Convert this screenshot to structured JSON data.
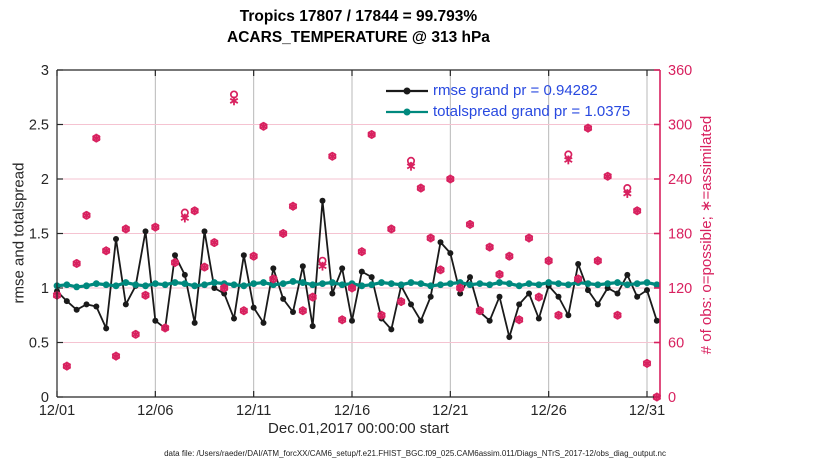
{
  "title": {
    "line1": "Tropics 17807 / 17844 = 99.793%",
    "line2": "ACARS_TEMPERATURE @ 313 hPa"
  },
  "footer": {
    "data_file_note": "data file: /Users/raeder/DAI/ATM_forcXX/CAM6_setup/f.e21.FHIST_BGC.f09_025.CAM6assim.011/Diags_NTrS_2017-12/obs_diag_output.nc"
  },
  "colors": {
    "obs_pink": "#D8215F",
    "rmse_black": "#1a1a1a",
    "totalspread_teal": "#00897E",
    "legend_text_blue": "#2849E0",
    "axis_dark": "#262626",
    "grid_vertical": "#b8b8b8",
    "grid_horizontal": "#f5c3d1",
    "background": "#ffffff"
  },
  "chart_data": {
    "type": "line",
    "title": [
      "Tropics 17807 / 17844 = 99.793%",
      "ACARS_TEMPERATURE @ 313 hPa"
    ],
    "xlabel": "Dec.01,2017 00:00:00 start",
    "ylabel_left": "rmse and totalspread",
    "ylabel_right": "# of obs: o=possible; ∗=assimilated",
    "grid": true,
    "legend_position": "top-right-inside",
    "obs_possible_total": 17844,
    "obs_assimilated_total": 17807,
    "percent_assimilated": 99.793,
    "rmse_grand_mean": 0.94282,
    "totalspread_grand_mean": 1.0375,
    "x_tick_labels": [
      "12/01",
      "12/06",
      "12/11",
      "12/16",
      "12/21",
      "12/26",
      "12/31"
    ],
    "x_tick_days": [
      0,
      5,
      10,
      15,
      20,
      25,
      30
    ],
    "xlim_days": [
      0,
      30.65
    ],
    "ylim_left": [
      0,
      3
    ],
    "yticks_left": [
      0,
      0.5,
      1,
      1.5,
      2,
      2.5,
      3
    ],
    "ylim_right": [
      0,
      360
    ],
    "yticks_right": [
      0,
      60,
      120,
      180,
      240,
      300,
      360
    ],
    "x_days": [
      0,
      0.5,
      1,
      1.5,
      2,
      2.5,
      3,
      3.5,
      4,
      4.5,
      5,
      5.5,
      6,
      6.5,
      7,
      7.5,
      8,
      8.5,
      9,
      9.5,
      10,
      10.5,
      11,
      11.5,
      12,
      12.5,
      13,
      13.5,
      14,
      14.5,
      15,
      15.5,
      16,
      16.5,
      17,
      17.5,
      18,
      18.5,
      19,
      19.5,
      20,
      20.5,
      21,
      21.5,
      22,
      22.5,
      23,
      23.5,
      24,
      24.5,
      25,
      25.5,
      26,
      26.5,
      27,
      27.5,
      28,
      28.5,
      29,
      29.5,
      30,
      30.5
    ],
    "series": [
      {
        "name": "rmse",
        "axis": "left",
        "marker": "filled-circle",
        "color": "#1a1a1a",
        "legend": "rmse grand pr = 0.94282",
        "values": [
          0.97,
          0.88,
          0.8,
          0.85,
          0.83,
          0.63,
          1.45,
          0.85,
          1.02,
          1.52,
          0.7,
          0.63,
          1.3,
          1.12,
          0.68,
          1.52,
          1.0,
          0.95,
          0.72,
          1.3,
          0.82,
          0.68,
          1.18,
          0.9,
          0.78,
          1.2,
          0.65,
          1.8,
          0.95,
          1.18,
          0.7,
          1.15,
          1.1,
          0.72,
          0.62,
          1.02,
          0.85,
          0.7,
          0.92,
          1.42,
          1.32,
          0.95,
          1.1,
          0.78,
          0.7,
          0.92,
          0.55,
          0.85,
          0.95,
          0.72,
          1.02,
          0.92,
          0.75,
          1.22,
          0.98,
          0.85,
          1.0,
          0.95,
          1.12,
          0.92,
          0.98,
          0.7
        ]
      },
      {
        "name": "totalspread",
        "axis": "left",
        "marker": "filled-circle",
        "color": "#00897E",
        "legend": "totalspread grand pr = 1.0375",
        "values": [
          1.02,
          1.03,
          1.01,
          1.02,
          1.04,
          1.03,
          1.02,
          1.05,
          1.03,
          1.02,
          1.04,
          1.03,
          1.05,
          1.04,
          1.02,
          1.03,
          1.05,
          1.04,
          1.03,
          1.02,
          1.04,
          1.05,
          1.03,
          1.04,
          1.06,
          1.05,
          1.03,
          1.04,
          1.05,
          1.03,
          1.04,
          1.02,
          1.03,
          1.05,
          1.04,
          1.03,
          1.05,
          1.04,
          1.02,
          1.03,
          1.04,
          1.05,
          1.03,
          1.04,
          1.03,
          1.05,
          1.04,
          1.02,
          1.04,
          1.03,
          1.05,
          1.04,
          1.03,
          1.05,
          1.04,
          1.03,
          1.04,
          1.05,
          1.03,
          1.04,
          1.05,
          1.03
        ]
      },
      {
        "name": "obs_possible",
        "axis": "right",
        "marker": "o",
        "color": "#D8215F",
        "legend": null,
        "values": [
          112,
          34,
          147,
          200,
          285,
          161,
          45,
          185,
          69,
          112,
          187,
          76,
          148,
          203,
          205,
          143,
          170,
          120,
          333,
          95,
          155,
          298,
          130,
          180,
          210,
          95,
          110,
          150,
          265,
          85,
          120,
          160,
          289,
          90,
          185,
          105,
          260,
          230,
          175,
          140,
          240,
          120,
          190,
          95,
          165,
          135,
          155,
          85,
          175,
          110,
          150,
          90,
          267,
          130,
          296,
          150,
          243,
          90,
          230,
          205,
          37,
          0
        ]
      },
      {
        "name": "obs_assimilated",
        "axis": "right",
        "marker": "asterisk",
        "color": "#D8215F",
        "legend": null,
        "values": [
          112,
          34,
          147,
          200,
          285,
          161,
          45,
          185,
          69,
          112,
          187,
          76,
          148,
          197,
          205,
          143,
          170,
          120,
          326,
          95,
          155,
          298,
          130,
          180,
          210,
          95,
          110,
          144,
          265,
          85,
          120,
          160,
          289,
          90,
          185,
          105,
          254,
          230,
          175,
          140,
          240,
          120,
          190,
          95,
          165,
          135,
          155,
          85,
          175,
          110,
          150,
          90,
          261,
          130,
          296,
          150,
          243,
          90,
          224,
          205,
          37,
          0
        ]
      }
    ]
  }
}
